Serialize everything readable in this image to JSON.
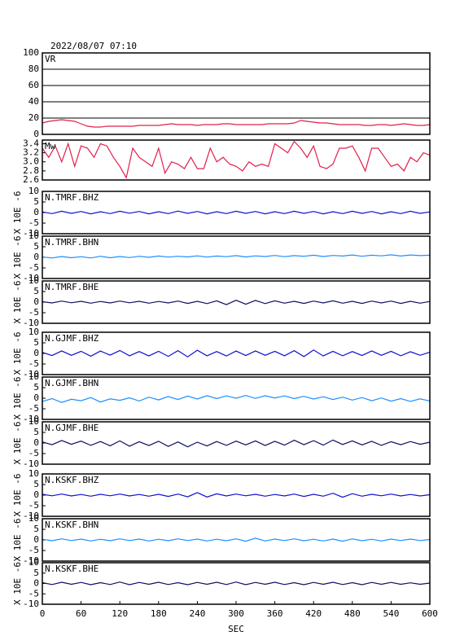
{
  "chart_data": [
    {
      "type": "line",
      "title": "2022/08/07 07:10",
      "xlim": [
        0,
        600
      ],
      "ylim": [
        0,
        100
      ],
      "yticks": [
        0,
        20,
        40,
        60,
        80,
        100
      ],
      "grid": true,
      "x": [
        0,
        10,
        20,
        30,
        40,
        50,
        60,
        70,
        80,
        90,
        100,
        110,
        120,
        130,
        140,
        150,
        160,
        170,
        180,
        190,
        200,
        210,
        220,
        230,
        240,
        250,
        260,
        270,
        280,
        290,
        300,
        310,
        320,
        330,
        340,
        350,
        360,
        370,
        380,
        390,
        400,
        410,
        420,
        430,
        440,
        450,
        460,
        470,
        480,
        490,
        500,
        510,
        520,
        530,
        540,
        550,
        560,
        570,
        580,
        590,
        600
      ],
      "series": [
        {
          "name": "VR",
          "color": "#e0204a",
          "values": [
            14,
            16,
            17,
            18,
            17,
            16,
            13,
            10,
            9,
            9,
            10,
            10,
            10,
            10,
            10,
            11,
            11,
            11,
            11,
            12,
            13,
            12,
            12,
            12,
            11,
            12,
            12,
            12,
            13,
            13,
            12,
            12,
            12,
            12,
            12,
            13,
            13,
            13,
            13,
            14,
            17,
            16,
            15,
            14,
            14,
            13,
            12,
            12,
            12,
            12,
            11,
            11,
            12,
            12,
            11,
            12,
            13,
            12,
            11,
            11,
            12
          ]
        }
      ]
    },
    {
      "type": "line",
      "xlim": [
        0,
        600
      ],
      "ylim": [
        2.6,
        3.48
      ],
      "yticks": [
        2.6,
        2.8,
        {
          "value": 3,
          "label": "3.0"
        },
        3.2,
        3.4
      ],
      "grid": false,
      "x": [
        0,
        10,
        20,
        30,
        40,
        50,
        60,
        70,
        80,
        90,
        100,
        110,
        120,
        130,
        140,
        150,
        160,
        170,
        180,
        190,
        200,
        210,
        220,
        230,
        240,
        250,
        260,
        270,
        280,
        290,
        300,
        310,
        320,
        330,
        340,
        350,
        360,
        370,
        380,
        390,
        400,
        410,
        420,
        430,
        440,
        450,
        460,
        470,
        480,
        490,
        500,
        510,
        520,
        530,
        540,
        550,
        560,
        570,
        580,
        590,
        600
      ],
      "series": [
        {
          "name": "Mw",
          "color": "#e0204a",
          "values": [
            3.3,
            3.1,
            3.35,
            3.0,
            3.4,
            2.9,
            3.35,
            3.3,
            3.1,
            3.4,
            3.35,
            3.1,
            2.9,
            2.65,
            3.3,
            3.1,
            3.0,
            2.9,
            3.3,
            2.75,
            3.0,
            2.95,
            2.85,
            3.1,
            2.85,
            2.85,
            3.3,
            3.0,
            3.1,
            2.95,
            2.9,
            2.8,
            3.0,
            2.9,
            2.95,
            2.9,
            3.4,
            3.3,
            3.2,
            3.45,
            3.3,
            3.1,
            3.35,
            2.9,
            2.85,
            2.95,
            3.3,
            3.3,
            3.35,
            3.1,
            2.8,
            3.3,
            3.3,
            3.1,
            2.9,
            2.95,
            2.8,
            3.1,
            3.0,
            3.2,
            3.15
          ]
        }
      ]
    },
    {
      "type": "line",
      "ylabel": "X 10E -6",
      "xlim": [
        0,
        600
      ],
      "ylim": [
        -10,
        10
      ],
      "yticks": [
        -10,
        -5,
        0,
        5,
        10
      ],
      "x": [
        0,
        15,
        30,
        45,
        60,
        75,
        90,
        105,
        120,
        135,
        150,
        165,
        180,
        195,
        210,
        225,
        240,
        255,
        270,
        285,
        300,
        315,
        330,
        345,
        360,
        375,
        390,
        405,
        420,
        435,
        450,
        465,
        480,
        495,
        510,
        525,
        540,
        555,
        570,
        585,
        600
      ],
      "series": [
        {
          "name": "N.TMRF.BHZ",
          "color": "#1010d0",
          "values": [
            0.3,
            -0.5,
            0.6,
            -0.4,
            0.5,
            -0.6,
            0.4,
            -0.5,
            0.6,
            -0.3,
            0.5,
            -0.6,
            0.4,
            -0.5,
            0.7,
            -0.4,
            0.5,
            -0.6,
            0.4,
            -0.5,
            0.6,
            -0.4,
            0.5,
            -0.6,
            0.4,
            -0.5,
            0.6,
            -0.4,
            0.5,
            -0.6,
            0.4,
            -0.5,
            0.6,
            -0.4,
            0.5,
            -0.6,
            0.4,
            -0.5,
            0.6,
            -0.4,
            0.3
          ]
        }
      ]
    },
    {
      "type": "line",
      "ylabel": "X 10E -6",
      "xlim": [
        0,
        600
      ],
      "ylim": [
        -10,
        10
      ],
      "yticks": [
        -10,
        -5,
        0,
        5,
        10
      ],
      "x": [
        0,
        15,
        30,
        45,
        60,
        75,
        90,
        105,
        120,
        135,
        150,
        165,
        180,
        195,
        210,
        225,
        240,
        255,
        270,
        285,
        300,
        315,
        330,
        345,
        360,
        375,
        390,
        405,
        420,
        435,
        450,
        465,
        480,
        495,
        510,
        525,
        540,
        555,
        570,
        585,
        600
      ],
      "series": [
        {
          "name": "N.TMRF.BHN",
          "color": "#1e8fff",
          "values": [
            0.2,
            -0.3,
            0.4,
            -0.2,
            0.3,
            -0.3,
            0.5,
            -0.2,
            0.4,
            -0.1,
            0.5,
            0,
            0.6,
            0.1,
            0.5,
            0.2,
            0.7,
            0.1,
            0.6,
            0.3,
            0.8,
            0.2,
            0.7,
            0.4,
            0.9,
            0.3,
            0.8,
            0.5,
            1,
            0.4,
            0.9,
            0.6,
            1.1,
            0.5,
            1,
            0.7,
            1.2,
            0.6,
            1.1,
            0.8,
            1
          ]
        }
      ]
    },
    {
      "type": "line",
      "ylabel": "X 10E -6",
      "xlim": [
        0,
        600
      ],
      "ylim": [
        -10,
        10
      ],
      "yticks": [
        -10,
        -5,
        0,
        5,
        10
      ],
      "x": [
        0,
        15,
        30,
        45,
        60,
        75,
        90,
        105,
        120,
        135,
        150,
        165,
        180,
        195,
        210,
        225,
        240,
        255,
        270,
        285,
        300,
        315,
        330,
        345,
        360,
        375,
        390,
        405,
        420,
        435,
        450,
        465,
        480,
        495,
        510,
        525,
        540,
        555,
        570,
        585,
        600
      ],
      "series": [
        {
          "name": "N.TMRF.BHE",
          "color": "#101060",
          "values": [
            0.2,
            -0.4,
            0.5,
            -0.3,
            0.4,
            -0.5,
            0.3,
            -0.4,
            0.5,
            -0.3,
            0.4,
            -0.5,
            0.3,
            -0.4,
            0.5,
            -0.6,
            0.4,
            -0.7,
            0.6,
            -1.2,
            0.9,
            -1,
            0.8,
            -0.7,
            0.6,
            -0.5,
            0.4,
            -0.6,
            0.5,
            -0.4,
            0.6,
            -0.5,
            0.4,
            -0.6,
            0.5,
            -0.4,
            0.5,
            -0.6,
            0.4,
            -0.5,
            0.3
          ]
        }
      ]
    },
    {
      "type": "line",
      "ylabel": "X 10E -6",
      "xlim": [
        0,
        600
      ],
      "ylim": [
        -10,
        10
      ],
      "yticks": [
        -10,
        -5,
        0,
        5,
        10
      ],
      "x": [
        0,
        15,
        30,
        45,
        60,
        75,
        90,
        105,
        120,
        135,
        150,
        165,
        180,
        195,
        210,
        225,
        240,
        255,
        270,
        285,
        300,
        315,
        330,
        345,
        360,
        375,
        390,
        405,
        420,
        435,
        450,
        465,
        480,
        495,
        510,
        525,
        540,
        555,
        570,
        585,
        600
      ],
      "series": [
        {
          "name": "N.GJMF.BHZ",
          "color": "#1010d0",
          "values": [
            0.5,
            -1,
            1.2,
            -0.9,
            1,
            -1.3,
            1.1,
            -0.8,
            1.4,
            -1.1,
            0.9,
            -1.2,
            1,
            -1.4,
            1.3,
            -1.6,
            1.5,
            -1.1,
            0.9,
            -1.2,
            1.1,
            -1,
            1.2,
            -0.9,
            1,
            -1.1,
            1.3,
            -1.5,
            1.6,
            -1.2,
            1,
            -1.1,
            0.9,
            -1,
            1.2,
            -0.9,
            1,
            -1.1,
            0.8,
            -0.9,
            0.6
          ]
        }
      ]
    },
    {
      "type": "line",
      "ylabel": "X 10E -6",
      "xlim": [
        0,
        600
      ],
      "ylim": [
        -10,
        10
      ],
      "yticks": [
        -10,
        -5,
        0,
        5,
        10
      ],
      "x": [
        0,
        15,
        30,
        45,
        60,
        75,
        90,
        105,
        120,
        135,
        150,
        165,
        180,
        195,
        210,
        225,
        240,
        255,
        270,
        285,
        300,
        315,
        330,
        345,
        360,
        375,
        390,
        405,
        420,
        435,
        450,
        465,
        480,
        495,
        510,
        525,
        540,
        555,
        570,
        585,
        600
      ],
      "series": [
        {
          "name": "N.GJMF.BHN",
          "color": "#1e8fff",
          "values": [
            -1.5,
            -0.2,
            -2,
            -0.5,
            -1.2,
            0.3,
            -1.8,
            -0.3,
            -1,
            0.2,
            -1.3,
            0.5,
            -0.8,
            0.8,
            -0.6,
            1,
            -0.4,
            1.2,
            -0.2,
            1.1,
            0,
            1.3,
            -0.1,
            1.2,
            0.1,
            1.1,
            -0.2,
            0.9,
            -0.4,
            0.7,
            -0.6,
            0.5,
            -0.9,
            0.3,
            -1.2,
            0.1,
            -1.4,
            -0.2,
            -1.5,
            -0.3,
            -1.3
          ]
        }
      ]
    },
    {
      "type": "line",
      "ylabel": "X 10E -6",
      "xlim": [
        0,
        600
      ],
      "ylim": [
        -10,
        10
      ],
      "yticks": [
        -10,
        -5,
        0,
        5,
        10
      ],
      "x": [
        0,
        15,
        30,
        45,
        60,
        75,
        90,
        105,
        120,
        135,
        150,
        165,
        180,
        195,
        210,
        225,
        240,
        255,
        270,
        285,
        300,
        315,
        330,
        345,
        360,
        375,
        390,
        405,
        420,
        435,
        450,
        465,
        480,
        495,
        510,
        525,
        540,
        555,
        570,
        585,
        600
      ],
      "series": [
        {
          "name": "N.GJMF.BHE",
          "color": "#101060",
          "values": [
            0.5,
            -0.8,
            1.2,
            -0.6,
            0.9,
            -1.1,
            0.7,
            -1.3,
            1,
            -1.5,
            0.6,
            -1.2,
            0.8,
            -1.6,
            0.5,
            -1.8,
            0.4,
            -1.4,
            0.7,
            -1.1,
            0.9,
            -0.9,
            1,
            -1.2,
            0.8,
            -1,
            1.3,
            -0.8,
            1.1,
            -1,
            1.4,
            -0.7,
            1,
            -0.9,
            0.8,
            -1.1,
            0.6,
            -0.8,
            0.7,
            -0.6,
            0.4
          ]
        }
      ]
    },
    {
      "type": "line",
      "ylabel": "X 10E -6",
      "xlim": [
        0,
        600
      ],
      "ylim": [
        -10,
        10
      ],
      "yticks": [
        -10,
        -5,
        0,
        5,
        10
      ],
      "x": [
        0,
        15,
        30,
        45,
        60,
        75,
        90,
        105,
        120,
        135,
        150,
        165,
        180,
        195,
        210,
        225,
        240,
        255,
        270,
        285,
        300,
        315,
        330,
        345,
        360,
        375,
        390,
        405,
        420,
        435,
        450,
        465,
        480,
        495,
        510,
        525,
        540,
        555,
        570,
        585,
        600
      ],
      "series": [
        {
          "name": "N.KSKF.BHZ",
          "color": "#1010d0",
          "values": [
            0.4,
            -0.3,
            0.5,
            -0.4,
            0.3,
            -0.5,
            0.4,
            -0.3,
            0.5,
            -0.4,
            0.3,
            -0.5,
            0.4,
            -0.6,
            0.5,
            -0.8,
            1.2,
            -0.9,
            0.6,
            -0.4,
            0.5,
            -0.3,
            0.4,
            -0.5,
            0.3,
            -0.4,
            0.5,
            -0.6,
            0.4,
            -0.5,
            0.9,
            -1,
            0.7,
            -0.5,
            0.4,
            -0.3,
            0.5,
            -0.4,
            0.3,
            -0.4,
            0.2
          ]
        }
      ]
    },
    {
      "type": "line",
      "ylabel": "X 10E -6",
      "xlim": [
        0,
        600
      ],
      "ylim": [
        -10,
        10
      ],
      "yticks": [
        -10,
        -5,
        0,
        5,
        10
      ],
      "x": [
        0,
        15,
        30,
        45,
        60,
        75,
        90,
        105,
        120,
        135,
        150,
        165,
        180,
        195,
        210,
        225,
        240,
        255,
        270,
        285,
        300,
        315,
        330,
        345,
        360,
        375,
        390,
        405,
        420,
        435,
        450,
        465,
        480,
        495,
        510,
        525,
        540,
        555,
        570,
        585,
        600
      ],
      "series": [
        {
          "name": "N.KSKF.BHN",
          "color": "#1e8fff",
          "values": [
            0.3,
            -0.4,
            0.5,
            -0.3,
            0.4,
            -0.5,
            0.3,
            -0.4,
            0.5,
            -0.3,
            0.4,
            -0.5,
            0.3,
            -0.4,
            0.5,
            -0.3,
            0.4,
            -0.5,
            0.3,
            -0.4,
            0.5,
            -0.6,
            0.8,
            -0.5,
            0.4,
            -0.3,
            0.5,
            -0.4,
            0.3,
            -0.5,
            0.4,
            -0.6,
            0.5,
            -0.4,
            0.3,
            -0.5,
            0.4,
            -0.3,
            0.4,
            -0.3,
            0.2
          ]
        }
      ]
    },
    {
      "type": "line",
      "ylabel": "X 10E -6",
      "xlabel": "SEC",
      "xlim": [
        0,
        600
      ],
      "ylim": [
        -10,
        10
      ],
      "yticks": [
        -10,
        -5,
        0,
        5,
        10
      ],
      "xticks": [
        0,
        60,
        120,
        180,
        240,
        300,
        360,
        420,
        480,
        540,
        600
      ],
      "x": [
        0,
        15,
        30,
        45,
        60,
        75,
        90,
        105,
        120,
        135,
        150,
        165,
        180,
        195,
        210,
        225,
        240,
        255,
        270,
        285,
        300,
        315,
        330,
        345,
        360,
        375,
        390,
        405,
        420,
        435,
        450,
        465,
        480,
        495,
        510,
        525,
        540,
        555,
        570,
        585,
        600
      ],
      "series": [
        {
          "name": "N.KSKF.BHE",
          "color": "#101060",
          "values": [
            0.4,
            -0.5,
            0.6,
            -0.4,
            0.5,
            -0.6,
            0.4,
            -0.5,
            0.7,
            -0.6,
            0.5,
            -0.4,
            0.6,
            -0.5,
            0.4,
            -0.6,
            0.5,
            -0.4,
            0.6,
            -0.5,
            0.7,
            -0.6,
            0.5,
            -0.4,
            0.6,
            -0.5,
            0.4,
            -0.6,
            0.5,
            -0.4,
            0.6,
            -0.5,
            0.4,
            -0.6,
            0.5,
            -0.4,
            0.5,
            -0.4,
            0.3,
            -0.4,
            0.2
          ]
        }
      ]
    }
  ]
}
